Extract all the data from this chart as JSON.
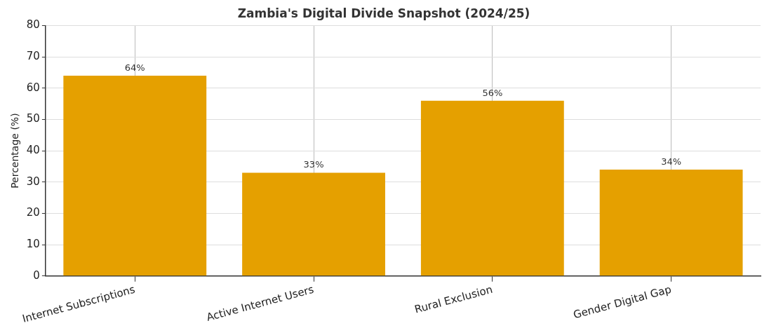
{
  "chart_data": {
    "type": "bar",
    "title": "Zambia's Digital Divide Snapshot (2024/25)",
    "ylabel": "Percentage (%)",
    "categories": [
      "Internet Subscriptions",
      "Active Internet Users",
      "Rural Exclusion",
      "Gender Digital Gap"
    ],
    "values": [
      64,
      33,
      56,
      34
    ],
    "color": "#e5a000",
    "value_labels": [
      "64%",
      "33%",
      "56%",
      "34%"
    ],
    "ylim": [
      0,
      80
    ],
    "yticks": [
      0,
      10,
      20,
      30,
      40,
      50,
      60,
      70,
      80
    ],
    "grid": true,
    "legend": false
  }
}
